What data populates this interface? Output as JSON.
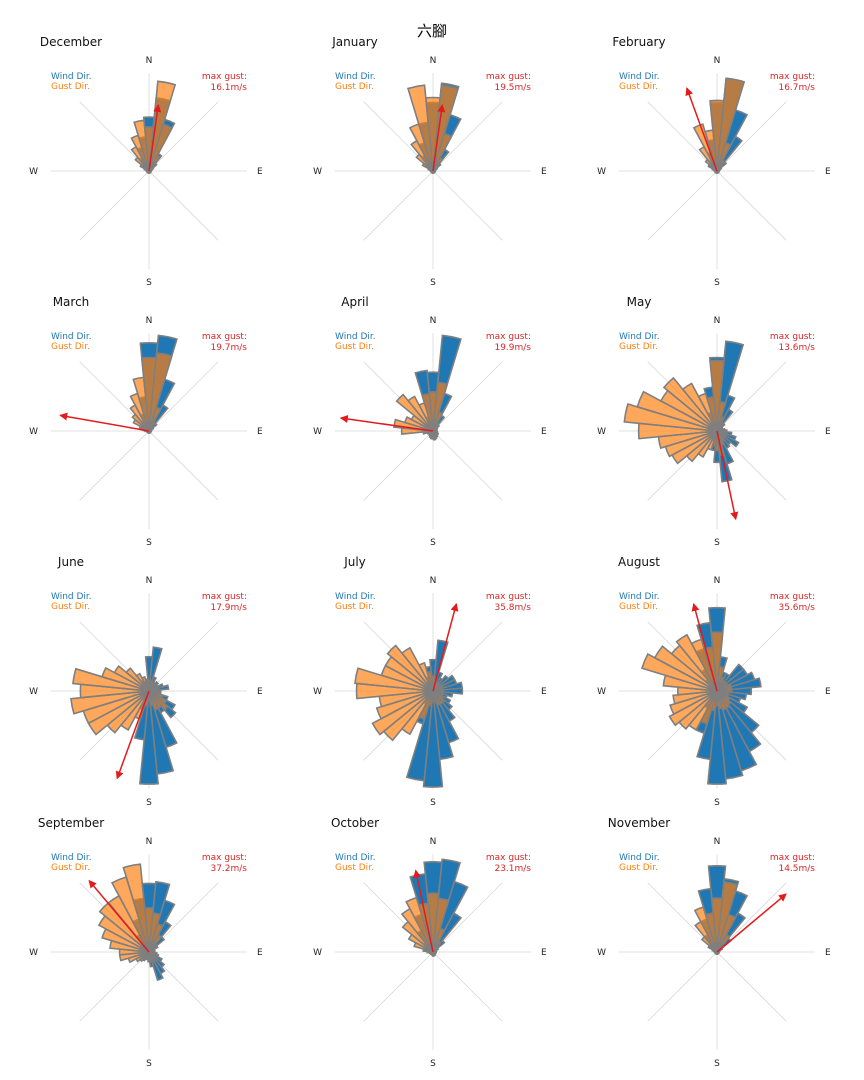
{
  "title": "六腳",
  "compass": {
    "n": "N",
    "e": "E",
    "s": "S",
    "w": "W"
  },
  "legend": {
    "wind": "Wind Dir.",
    "gust": "Gust Dir.",
    "max_gust": "max gust:"
  },
  "colors": {
    "wind": "#1f77b4",
    "gust": "#ff7f0e",
    "edge": "#7f7f7f",
    "arrow": "#e41a1c",
    "grid": "#d9d9d9"
  },
  "chart_data": {
    "type": "polar-bar",
    "sector_width_deg": 11.25,
    "directions_deg": [
      0,
      11.25,
      22.5,
      33.75,
      45,
      56.25,
      67.5,
      78.75,
      90,
      101.25,
      112.5,
      123.75,
      135,
      146.25,
      157.5,
      168.75,
      180,
      191.25,
      202.5,
      213.75,
      225,
      236.25,
      247.5,
      258.75,
      270,
      281.25,
      292.5,
      303.75,
      315,
      326.25,
      337.5,
      348.75
    ],
    "months": [
      {
        "name": "December",
        "max_gust": "16.1m/s",
        "gust_dir_deg": 8,
        "gust_len": 0.68,
        "wind": [
          0.55,
          0.75,
          0.55,
          0.2,
          0.1,
          0.05,
          0.03,
          0.02,
          0.02,
          0.02,
          0.02,
          0.02,
          0.02,
          0.02,
          0.02,
          0.02,
          0.02,
          0.02,
          0.02,
          0.02,
          0.02,
          0.02,
          0.02,
          0.02,
          0.02,
          0.02,
          0.03,
          0.05,
          0.08,
          0.15,
          0.25,
          0.35
        ],
        "gust": [
          0.45,
          0.92,
          0.5,
          0.18,
          0.08,
          0.04,
          0.02,
          0.02,
          0.02,
          0.02,
          0.02,
          0.02,
          0.02,
          0.02,
          0.02,
          0.02,
          0.02,
          0.02,
          0.02,
          0.02,
          0.02,
          0.02,
          0.02,
          0.02,
          0.02,
          0.03,
          0.05,
          0.1,
          0.18,
          0.28,
          0.38,
          0.52
        ]
      },
      {
        "name": "January",
        "max_gust": "19.5m/s",
        "gust_dir_deg": 8,
        "gust_len": 0.68,
        "wind": [
          0.7,
          0.9,
          0.6,
          0.25,
          0.1,
          0.05,
          0.03,
          0.02,
          0.02,
          0.02,
          0.02,
          0.02,
          0.02,
          0.02,
          0.02,
          0.02,
          0.02,
          0.02,
          0.02,
          0.02,
          0.02,
          0.02,
          0.02,
          0.02,
          0.02,
          0.02,
          0.03,
          0.05,
          0.1,
          0.18,
          0.3,
          0.5
        ],
        "gust": [
          0.75,
          0.88,
          0.4,
          0.15,
          0.06,
          0.03,
          0.02,
          0.02,
          0.02,
          0.02,
          0.02,
          0.02,
          0.02,
          0.02,
          0.02,
          0.02,
          0.02,
          0.02,
          0.02,
          0.02,
          0.02,
          0.02,
          0.02,
          0.02,
          0.02,
          0.03,
          0.05,
          0.12,
          0.22,
          0.35,
          0.5,
          0.88
        ]
      },
      {
        "name": "February",
        "max_gust": "16.7m/s",
        "gust_dir_deg": -20,
        "gust_len": 0.9,
        "wind": [
          0.7,
          0.95,
          0.65,
          0.4,
          0.12,
          0.05,
          0.03,
          0.02,
          0.02,
          0.02,
          0.02,
          0.02,
          0.02,
          0.02,
          0.02,
          0.02,
          0.02,
          0.02,
          0.02,
          0.02,
          0.02,
          0.02,
          0.02,
          0.02,
          0.02,
          0.02,
          0.03,
          0.04,
          0.08,
          0.12,
          0.2,
          0.32
        ],
        "gust": [
          0.72,
          0.95,
          0.3,
          0.12,
          0.05,
          0.03,
          0.02,
          0.02,
          0.02,
          0.02,
          0.02,
          0.02,
          0.02,
          0.02,
          0.02,
          0.02,
          0.02,
          0.02,
          0.02,
          0.02,
          0.02,
          0.02,
          0.02,
          0.02,
          0.02,
          0.03,
          0.05,
          0.1,
          0.15,
          0.28,
          0.5,
          0.42
        ]
      },
      {
        "name": "March",
        "max_gust": "19.7m/s",
        "gust_dir_deg": -80,
        "gust_len": 0.92,
        "wind": [
          0.9,
          0.98,
          0.55,
          0.3,
          0.1,
          0.05,
          0.03,
          0.02,
          0.02,
          0.02,
          0.02,
          0.02,
          0.02,
          0.02,
          0.02,
          0.02,
          0.02,
          0.02,
          0.02,
          0.02,
          0.02,
          0.02,
          0.02,
          0.02,
          0.02,
          0.02,
          0.03,
          0.04,
          0.08,
          0.12,
          0.18,
          0.35
        ],
        "gust": [
          0.75,
          0.8,
          0.25,
          0.1,
          0.05,
          0.03,
          0.02,
          0.02,
          0.02,
          0.02,
          0.02,
          0.02,
          0.02,
          0.02,
          0.02,
          0.02,
          0.02,
          0.02,
          0.02,
          0.02,
          0.02,
          0.02,
          0.02,
          0.02,
          0.04,
          0.06,
          0.1,
          0.18,
          0.22,
          0.3,
          0.4,
          0.55
        ]
      },
      {
        "name": "April",
        "max_gust": "19.9m/s",
        "gust_dir_deg": -82,
        "gust_len": 0.95,
        "wind": [
          0.6,
          0.98,
          0.4,
          0.18,
          0.08,
          0.05,
          0.04,
          0.04,
          0.04,
          0.04,
          0.05,
          0.06,
          0.06,
          0.07,
          0.08,
          0.09,
          0.08,
          0.08,
          0.07,
          0.06,
          0.05,
          0.04,
          0.03,
          0.03,
          0.03,
          0.03,
          0.03,
          0.04,
          0.06,
          0.1,
          0.15,
          0.62
        ],
        "gust": [
          0.4,
          0.5,
          0.2,
          0.08,
          0.04,
          0.03,
          0.02,
          0.02,
          0.02,
          0.02,
          0.02,
          0.03,
          0.04,
          0.05,
          0.06,
          0.07,
          0.06,
          0.06,
          0.05,
          0.05,
          0.05,
          0.05,
          0.06,
          0.1,
          0.32,
          0.4,
          0.3,
          0.25,
          0.48,
          0.4,
          0.3,
          0.38
        ]
      },
      {
        "name": "May",
        "max_gust": "13.6m/s",
        "gust_dir_deg": 168,
        "gust_len": 0.92,
        "wind": [
          0.75,
          0.92,
          0.38,
          0.25,
          0.1,
          0.06,
          0.06,
          0.08,
          0.1,
          0.15,
          0.2,
          0.25,
          0.18,
          0.2,
          0.35,
          0.52,
          0.32,
          0.2,
          0.1,
          0.08,
          0.08,
          0.08,
          0.06,
          0.06,
          0.06,
          0.06,
          0.05,
          0.06,
          0.08,
          0.1,
          0.2,
          0.45
        ],
        "gust": [
          0.72,
          0.3,
          0.15,
          0.1,
          0.06,
          0.05,
          0.04,
          0.04,
          0.05,
          0.06,
          0.07,
          0.08,
          0.1,
          0.12,
          0.15,
          0.25,
          0.2,
          0.15,
          0.2,
          0.3,
          0.4,
          0.52,
          0.55,
          0.6,
          0.8,
          0.95,
          0.85,
          0.65,
          0.7,
          0.55,
          0.4,
          0.35
        ]
      },
      {
        "name": "June",
        "max_gust": "17.9m/s",
        "gust_dir_deg": -160,
        "gust_len": 0.95,
        "wind": [
          0.35,
          0.45,
          0.15,
          0.1,
          0.12,
          0.1,
          0.15,
          0.2,
          0.12,
          0.12,
          0.2,
          0.3,
          0.35,
          0.25,
          0.6,
          0.85,
          0.95,
          0.5,
          0.2,
          0.1,
          0.08,
          0.06,
          0.05,
          0.05,
          0.05,
          0.04,
          0.04,
          0.04,
          0.06,
          0.12,
          0.1,
          0.12
        ],
        "gust": [
          0.1,
          0.08,
          0.06,
          0.06,
          0.05,
          0.05,
          0.06,
          0.08,
          0.1,
          0.12,
          0.15,
          0.2,
          0.25,
          0.2,
          0.2,
          0.15,
          0.1,
          0.15,
          0.3,
          0.45,
          0.55,
          0.7,
          0.7,
          0.8,
          0.7,
          0.78,
          0.5,
          0.4,
          0.3,
          0.2,
          0.15,
          0.12
        ]
      },
      {
        "name": "July",
        "max_gust": "35.8m/s",
        "gust_dir_deg": 15,
        "gust_len": 0.92,
        "wind": [
          0.32,
          0.52,
          0.2,
          0.15,
          0.2,
          0.25,
          0.25,
          0.3,
          0.3,
          0.2,
          0.15,
          0.2,
          0.25,
          0.35,
          0.55,
          0.7,
          0.98,
          0.92,
          0.35,
          0.15,
          0.1,
          0.08,
          0.06,
          0.05,
          0.05,
          0.05,
          0.05,
          0.05,
          0.06,
          0.1,
          0.15,
          0.25
        ],
        "gust": [
          0.15,
          0.12,
          0.1,
          0.08,
          0.08,
          0.08,
          0.1,
          0.1,
          0.1,
          0.1,
          0.1,
          0.12,
          0.15,
          0.15,
          0.15,
          0.12,
          0.1,
          0.15,
          0.3,
          0.5,
          0.65,
          0.7,
          0.6,
          0.55,
          0.78,
          0.8,
          0.55,
          0.55,
          0.6,
          0.5,
          0.3,
          0.2
        ]
      },
      {
        "name": "August",
        "max_gust": "35.6m/s",
        "gust_dir_deg": -15,
        "gust_len": 0.92,
        "wind": [
          0.85,
          0.35,
          0.2,
          0.2,
          0.35,
          0.35,
          0.4,
          0.45,
          0.35,
          0.3,
          0.25,
          0.35,
          0.55,
          0.7,
          0.85,
          0.9,
          0.95,
          0.7,
          0.45,
          0.2,
          0.1,
          0.08,
          0.06,
          0.05,
          0.05,
          0.05,
          0.06,
          0.08,
          0.15,
          0.25,
          0.45,
          0.7
        ],
        "gust": [
          0.6,
          0.25,
          0.15,
          0.12,
          0.12,
          0.12,
          0.15,
          0.15,
          0.15,
          0.12,
          0.12,
          0.15,
          0.18,
          0.2,
          0.2,
          0.18,
          0.15,
          0.2,
          0.35,
          0.45,
          0.5,
          0.55,
          0.5,
          0.45,
          0.4,
          0.55,
          0.8,
          0.72,
          0.6,
          0.65,
          0.55,
          0.45
        ]
      },
      {
        "name": "September",
        "max_gust": "37.2m/s",
        "gust_dir_deg": -40,
        "gust_len": 0.95,
        "wind": [
          0.7,
          0.72,
          0.55,
          0.35,
          0.2,
          0.1,
          0.06,
          0.05,
          0.06,
          0.08,
          0.1,
          0.15,
          0.2,
          0.25,
          0.3,
          0.15,
          0.1,
          0.06,
          0.05,
          0.04,
          0.04,
          0.04,
          0.04,
          0.04,
          0.04,
          0.04,
          0.05,
          0.06,
          0.1,
          0.2,
          0.35,
          0.55
        ],
        "gust": [
          0.45,
          0.4,
          0.3,
          0.2,
          0.1,
          0.06,
          0.04,
          0.04,
          0.04,
          0.04,
          0.04,
          0.05,
          0.06,
          0.08,
          0.1,
          0.08,
          0.06,
          0.06,
          0.08,
          0.1,
          0.12,
          0.15,
          0.22,
          0.3,
          0.3,
          0.4,
          0.5,
          0.58,
          0.65,
          0.65,
          0.8,
          0.9
        ]
      },
      {
        "name": "October",
        "max_gust": "23.1m/s",
        "gust_dir_deg": -12,
        "gust_len": 0.85,
        "wind": [
          0.92,
          0.95,
          0.75,
          0.45,
          0.15,
          0.06,
          0.04,
          0.03,
          0.03,
          0.03,
          0.03,
          0.03,
          0.03,
          0.03,
          0.04,
          0.04,
          0.04,
          0.03,
          0.03,
          0.03,
          0.03,
          0.03,
          0.03,
          0.03,
          0.03,
          0.03,
          0.04,
          0.06,
          0.12,
          0.25,
          0.4,
          0.8
        ],
        "gust": [
          0.6,
          0.55,
          0.25,
          0.12,
          0.06,
          0.04,
          0.03,
          0.03,
          0.03,
          0.03,
          0.03,
          0.03,
          0.03,
          0.03,
          0.03,
          0.03,
          0.03,
          0.03,
          0.03,
          0.03,
          0.03,
          0.03,
          0.03,
          0.04,
          0.06,
          0.1,
          0.2,
          0.28,
          0.4,
          0.5,
          0.58,
          0.5
        ]
      },
      {
        "name": "November",
        "max_gust": "14.5m/s",
        "gust_dir_deg": 50,
        "gust_len": 0.92,
        "wind": [
          0.88,
          0.75,
          0.65,
          0.45,
          0.18,
          0.06,
          0.03,
          0.02,
          0.02,
          0.02,
          0.02,
          0.02,
          0.02,
          0.02,
          0.02,
          0.02,
          0.02,
          0.02,
          0.02,
          0.02,
          0.02,
          0.02,
          0.02,
          0.02,
          0.02,
          0.02,
          0.03,
          0.05,
          0.1,
          0.2,
          0.35,
          0.65
        ],
        "gust": [
          0.55,
          0.72,
          0.4,
          0.2,
          0.08,
          0.04,
          0.02,
          0.02,
          0.02,
          0.02,
          0.02,
          0.02,
          0.02,
          0.02,
          0.02,
          0.02,
          0.02,
          0.02,
          0.02,
          0.02,
          0.02,
          0.02,
          0.02,
          0.02,
          0.02,
          0.03,
          0.05,
          0.1,
          0.2,
          0.35,
          0.48,
          0.4
        ]
      }
    ]
  }
}
